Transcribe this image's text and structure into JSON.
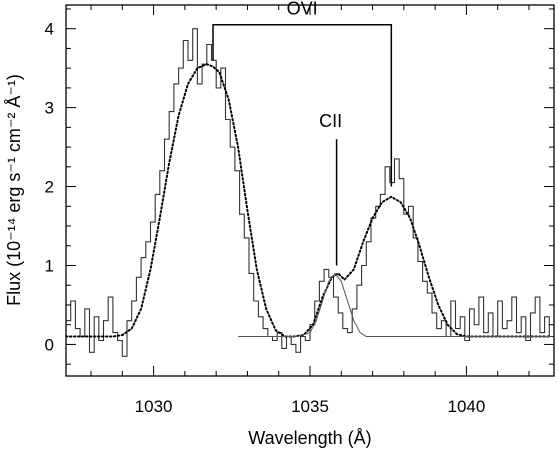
{
  "chart_data": {
    "type": "line",
    "xlabel": "Wavelength (Å)",
    "ylabel": "Flux (10⁻¹⁴ erg s⁻¹ cm⁻² Å⁻¹)",
    "xlim": [
      1027.2,
      1042.8
    ],
    "ylim": [
      -0.4,
      4.3
    ],
    "x_ticks": [
      1030,
      1035,
      1040
    ],
    "y_ticks": [
      0,
      1,
      2,
      3,
      4
    ],
    "annotations": [
      {
        "text": "OVI",
        "lines_at_x": [
          1031.9,
          1037.6
        ],
        "bracket_top_y": 4.05,
        "line_bottom_y": [
          3.6,
          2.0
        ]
      },
      {
        "text": "CII",
        "line_at_x": 1035.85,
        "line_top_y": 2.6,
        "line_bottom_y": 1.0
      }
    ],
    "series": [
      {
        "style": "histogram",
        "x": [
          1027.2,
          1027.35,
          1027.5,
          1027.65,
          1027.8,
          1027.95,
          1028.1,
          1028.25,
          1028.4,
          1028.55,
          1028.7,
          1028.85,
          1029.0,
          1029.15,
          1029.3,
          1029.45,
          1029.6,
          1029.75,
          1029.9,
          1030.05,
          1030.2,
          1030.35,
          1030.5,
          1030.65,
          1030.8,
          1030.95,
          1031.1,
          1031.25,
          1031.4,
          1031.55,
          1031.7,
          1031.85,
          1032.0,
          1032.15,
          1032.3,
          1032.45,
          1032.6,
          1032.75,
          1032.9,
          1033.05,
          1033.2,
          1033.35,
          1033.5,
          1033.65,
          1033.8,
          1033.95,
          1034.1,
          1034.25,
          1034.4,
          1034.55,
          1034.7,
          1034.85,
          1035.0,
          1035.15,
          1035.3,
          1035.45,
          1035.6,
          1035.75,
          1035.9,
          1036.05,
          1036.2,
          1036.35,
          1036.5,
          1036.65,
          1036.8,
          1036.95,
          1037.1,
          1037.25,
          1037.4,
          1037.55,
          1037.7,
          1037.85,
          1038.0,
          1038.15,
          1038.3,
          1038.45,
          1038.6,
          1038.75,
          1038.9,
          1039.05,
          1039.2,
          1039.35,
          1039.5,
          1039.65,
          1039.8,
          1039.95,
          1040.1,
          1040.25,
          1040.4,
          1040.55,
          1040.7,
          1040.85,
          1041.0,
          1041.15,
          1041.3,
          1041.45,
          1041.6,
          1041.75,
          1041.9,
          1042.05,
          1042.2,
          1042.35,
          1042.5,
          1042.65
        ],
        "y": [
          0.3,
          0.55,
          0.2,
          0.1,
          0.45,
          -0.1,
          0.35,
          0.05,
          0.3,
          0.6,
          0.15,
          0.05,
          -0.15,
          0.3,
          0.55,
          0.85,
          1.1,
          1.3,
          1.55,
          1.9,
          2.2,
          2.6,
          2.95,
          3.3,
          3.5,
          3.85,
          3.6,
          4.0,
          3.3,
          3.55,
          3.8,
          3.6,
          3.25,
          3.5,
          2.85,
          2.5,
          2.2,
          1.65,
          1.35,
          0.9,
          0.55,
          0.35,
          0.2,
          0.1,
          0.05,
          0.15,
          -0.05,
          0.1,
          0.0,
          -0.1,
          0.1,
          0.05,
          0.25,
          0.55,
          0.8,
          0.95,
          0.85,
          0.6,
          0.4,
          0.2,
          0.15,
          0.45,
          0.75,
          1.0,
          1.3,
          1.6,
          1.75,
          1.9,
          2.25,
          2.05,
          2.35,
          2.1,
          1.65,
          1.75,
          1.35,
          1.05,
          0.8,
          0.65,
          0.4,
          0.2,
          0.3,
          0.1,
          0.55,
          0.2,
          0.35,
          0.05,
          0.45,
          0.25,
          0.6,
          0.15,
          0.4,
          0.1,
          0.55,
          0.2,
          0.3,
          0.6,
          0.15,
          0.35,
          0.05,
          0.4,
          0.6,
          0.15,
          0.35,
          0.1
        ]
      },
      {
        "style": "dotted",
        "x": [
          1027.2,
          1027.5,
          1027.8,
          1028.1,
          1028.4,
          1028.7,
          1029.0,
          1029.3,
          1029.6,
          1029.9,
          1030.2,
          1030.5,
          1030.8,
          1031.1,
          1031.4,
          1031.7,
          1031.9,
          1032.1,
          1032.4,
          1032.7,
          1033.0,
          1033.3,
          1033.6,
          1033.9,
          1034.2,
          1034.5,
          1034.8,
          1035.1,
          1035.4,
          1035.7,
          1035.9,
          1036.1,
          1036.4,
          1036.7,
          1037.0,
          1037.3,
          1037.6,
          1037.9,
          1038.2,
          1038.5,
          1038.8,
          1039.1,
          1039.4,
          1039.7,
          1040.0,
          1040.5,
          1041.0,
          1041.5,
          1042.0,
          1042.7
        ],
        "y": [
          0.1,
          0.1,
          0.1,
          0.1,
          0.1,
          0.1,
          0.12,
          0.2,
          0.45,
          0.95,
          1.6,
          2.3,
          2.9,
          3.3,
          3.5,
          3.55,
          3.52,
          3.45,
          3.1,
          2.5,
          1.7,
          0.95,
          0.45,
          0.18,
          0.1,
          0.1,
          0.12,
          0.25,
          0.6,
          0.85,
          0.9,
          0.82,
          0.95,
          1.3,
          1.6,
          1.8,
          1.87,
          1.8,
          1.6,
          1.25,
          0.85,
          0.5,
          0.25,
          0.13,
          0.1,
          0.1,
          0.1,
          0.1,
          0.1,
          0.1
        ]
      },
      {
        "style": "thin-solid",
        "x": [
          1032.7,
          1034.6,
          1035.0,
          1035.2,
          1035.4,
          1035.6,
          1035.8,
          1036.0,
          1036.2,
          1036.4,
          1036.6,
          1036.8,
          1042.7
        ],
        "y": [
          0.1,
          0.1,
          0.15,
          0.3,
          0.55,
          0.8,
          0.9,
          0.8,
          0.55,
          0.3,
          0.15,
          0.1,
          0.1
        ]
      }
    ]
  }
}
